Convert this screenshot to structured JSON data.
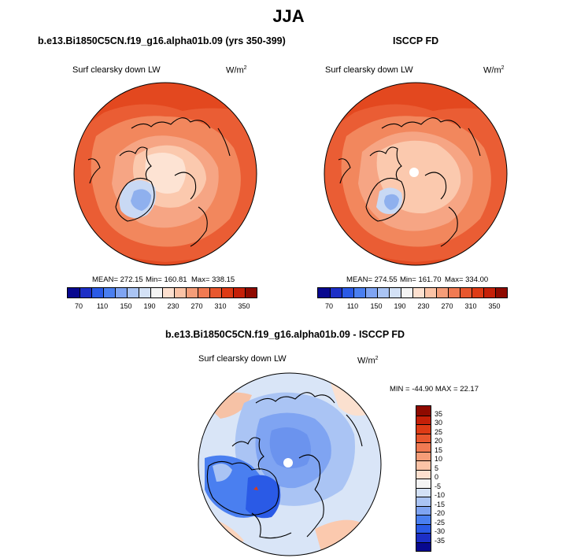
{
  "season": "JJA",
  "panels": [
    {
      "title": "b.e13.Bi1850C5CN.f19_g16.alpha01b.09 (yrs 350-399)",
      "variable": "Surf clearsky down LW",
      "unit": "W/m",
      "unit_sup": "2",
      "mean_text": "MEAN= 272.15",
      "min_text": "Min= 160.81",
      "max_text": "Max= 338.15"
    },
    {
      "title": "ISCCP FD",
      "variable": "Surf clearsky down LW",
      "unit": "W/m",
      "unit_sup": "2",
      "mean_text": "MEAN= 274.55",
      "min_text": "Min= 161.70",
      "max_text": "Max= 334.00"
    },
    {
      "title": "b.e13.Bi1850C5CN.f19_g16.alpha01b.09 - ISCCP FD",
      "variable": "Surf clearsky down LW",
      "unit": "W/m",
      "unit_sup": "2",
      "minmax_text": "MIN = -44.90 MAX =  22.17"
    }
  ],
  "abs_colorbar": {
    "ticks": [
      "70",
      "110",
      "150",
      "190",
      "230",
      "270",
      "310",
      "350"
    ],
    "colors": [
      "#08088f",
      "#1c2fc6",
      "#2a5ae6",
      "#4a7ff0",
      "#7fa4f2",
      "#aac4f4",
      "#d3e1f6",
      "#f4f4f4",
      "#fde0cf",
      "#fbc3a6",
      "#f59d78",
      "#f07a52",
      "#e8572e",
      "#de3b15",
      "#c52008",
      "#8f0a00"
    ]
  },
  "diff_colorbar": {
    "ticks": [
      "35",
      "30",
      "25",
      "20",
      "15",
      "10",
      "5",
      "0",
      "-5",
      "-10",
      "-15",
      "-20",
      "-25",
      "-30",
      "-35"
    ],
    "colors": [
      "#8f0a00",
      "#c52008",
      "#de3b15",
      "#e8572e",
      "#f07a52",
      "#f59d78",
      "#fbc3a6",
      "#fde0cf",
      "#f4f4f4",
      "#d3e1f6",
      "#aac4f4",
      "#7fa4f2",
      "#4a7ff0",
      "#2a5ae6",
      "#1c2fc6",
      "#08088f"
    ]
  }
}
